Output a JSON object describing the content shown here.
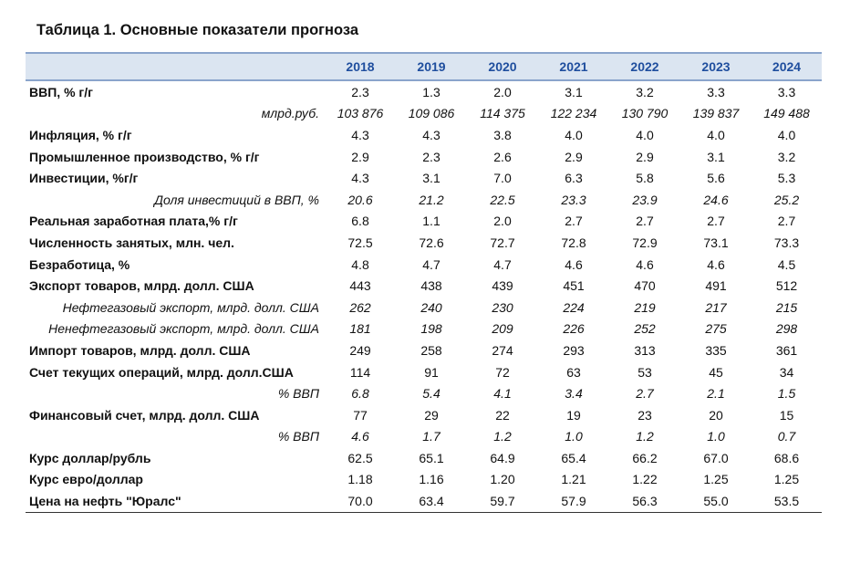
{
  "title": "Таблица 1. Основные показатели прогноза",
  "years": [
    "2018",
    "2019",
    "2020",
    "2021",
    "2022",
    "2023",
    "2024"
  ],
  "rows": [
    {
      "label": "ВВП, % г/г",
      "style": "bold",
      "values": [
        "2.3",
        "1.3",
        "2.0",
        "3.1",
        "3.2",
        "3.3",
        "3.3"
      ]
    },
    {
      "label": "млрд.руб.",
      "style": "sub",
      "values": [
        "103 876",
        "109 086",
        "114 375",
        "122 234",
        "130 790",
        "139 837",
        "149 488"
      ]
    },
    {
      "label": "Инфляция, % г/г",
      "style": "bold",
      "values": [
        "4.3",
        "4.3",
        "3.8",
        "4.0",
        "4.0",
        "4.0",
        "4.0"
      ]
    },
    {
      "label": "Промышленное производство, % г/г",
      "style": "bold",
      "values": [
        "2.9",
        "2.3",
        "2.6",
        "2.9",
        "2.9",
        "3.1",
        "3.2"
      ]
    },
    {
      "label": "Инвестиции, %г/г",
      "style": "bold",
      "values": [
        "4.3",
        "3.1",
        "7.0",
        "6.3",
        "5.8",
        "5.6",
        "5.3"
      ]
    },
    {
      "label": "Доля инвестиций в ВВП, %",
      "style": "sub",
      "values": [
        "20.6",
        "21.2",
        "22.5",
        "23.3",
        "23.9",
        "24.6",
        "25.2"
      ]
    },
    {
      "label": "Реальная заработная плата,% г/г",
      "style": "bold",
      "values": [
        "6.8",
        "1.1",
        "2.0",
        "2.7",
        "2.7",
        "2.7",
        "2.7"
      ]
    },
    {
      "label": "Численность занятых, млн. чел.",
      "style": "bold",
      "values": [
        "72.5",
        "72.6",
        "72.7",
        "72.8",
        "72.9",
        "73.1",
        "73.3"
      ]
    },
    {
      "label": "Безработица, %",
      "style": "bold",
      "values": [
        "4.8",
        "4.7",
        "4.7",
        "4.6",
        "4.6",
        "4.6",
        "4.5"
      ]
    },
    {
      "label": "Экспорт товаров, млрд. долл. США",
      "style": "bold",
      "values": [
        "443",
        "438",
        "439",
        "451",
        "470",
        "491",
        "512"
      ]
    },
    {
      "label": "Нефтегазовый экспорт, млрд. долл. США",
      "style": "sub",
      "values": [
        "262",
        "240",
        "230",
        "224",
        "219",
        "217",
        "215"
      ]
    },
    {
      "label": "Ненефтегазовый экспорт, млрд. долл. США",
      "style": "sub",
      "values": [
        "181",
        "198",
        "209",
        "226",
        "252",
        "275",
        "298"
      ]
    },
    {
      "label": "Импорт товаров, млрд. долл. США",
      "style": "bold",
      "values": [
        "249",
        "258",
        "274",
        "293",
        "313",
        "335",
        "361"
      ]
    },
    {
      "label": "Счет текущих операций, млрд. долл.США",
      "style": "bold",
      "values": [
        "114",
        "91",
        "72",
        "63",
        "53",
        "45",
        "34"
      ]
    },
    {
      "label": "% ВВП",
      "style": "sub",
      "values": [
        "6.8",
        "5.4",
        "4.1",
        "3.4",
        "2.7",
        "2.1",
        "1.5"
      ]
    },
    {
      "label": "Финансовый счет, млрд. долл. США",
      "style": "bold",
      "values": [
        "77",
        "29",
        "22",
        "19",
        "23",
        "20",
        "15"
      ]
    },
    {
      "label": "% ВВП",
      "style": "sub",
      "values": [
        "4.6",
        "1.7",
        "1.2",
        "1.0",
        "1.2",
        "1.0",
        "0.7"
      ]
    },
    {
      "label": "Курс доллар/рубль",
      "style": "bold",
      "values": [
        "62.5",
        "65.1",
        "64.9",
        "65.4",
        "66.2",
        "67.0",
        "68.6"
      ]
    },
    {
      "label": "Курс евро/доллар",
      "style": "bold",
      "values": [
        "1.18",
        "1.16",
        "1.20",
        "1.21",
        "1.22",
        "1.25",
        "1.25"
      ]
    },
    {
      "label": "Цена на нефть \"Юралс\"",
      "style": "bold",
      "values": [
        "70.0",
        "63.4",
        "59.7",
        "57.9",
        "56.3",
        "55.0",
        "53.5"
      ]
    }
  ]
}
